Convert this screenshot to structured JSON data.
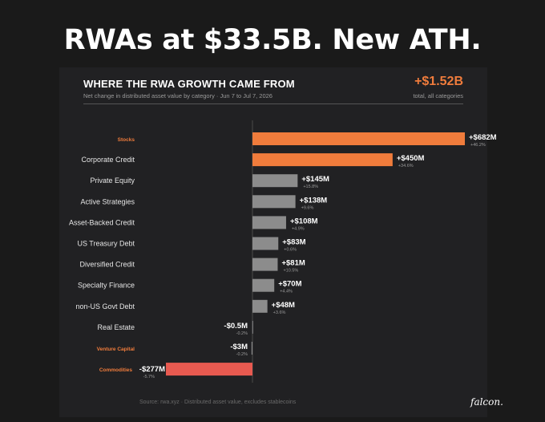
{
  "headline": "RWAs at $33.5B. New ATH.",
  "panel": {
    "title": "WHERE THE RWA GROWTH CAME FROM",
    "subtitle": "Net change in distributed asset value by category  ·  Jun 7 to Jul 7, 2026",
    "total": "+$1.52B",
    "total_label": "total, all categories"
  },
  "footer": "Source: rwa.xyz  ·  Distributed asset value, excludes stablecoins",
  "logo": "falcon.",
  "colors": {
    "orange": "#f07c3c",
    "gray": "#8c8c8c",
    "red": "#e85a50",
    "highlight_label": "#f07c3c"
  },
  "chart_data": {
    "type": "bar",
    "orientation": "horizontal",
    "unit": "$M",
    "title": "WHERE THE RWA GROWTH CAME FROM",
    "xlabel": "",
    "ylabel": "",
    "grid": false,
    "categories": [
      "Stocks",
      "Corporate Credit",
      "Private Equity",
      "Active Strategies",
      "Asset-Backed Credit",
      "US Treasury Debt",
      "Diversified Credit",
      "Specialty Finance",
      "non-US Govt Debt",
      "Real Estate",
      "Venture Capital",
      "Commodities"
    ],
    "values": [
      682,
      450,
      145,
      138,
      108,
      83,
      81,
      70,
      48,
      -0.5,
      -3,
      -277
    ],
    "value_labels": [
      "+$682M",
      "+$450M",
      "+$145M",
      "+$138M",
      "+$108M",
      "+$83M",
      "+$81M",
      "+$70M",
      "+$48M",
      "-$0.5M",
      "-$3M",
      "-$277M"
    ],
    "pct_labels": [
      "+46.2%",
      "+34.6%",
      "+15.8%",
      "+9.6%",
      "+4.9%",
      "+0.6%",
      "+10.5%",
      "+4.4%",
      "+3.6%",
      "-0.2%",
      "-0.2%",
      "-5.7%"
    ],
    "bar_colors": [
      "orange",
      "orange",
      "gray",
      "gray",
      "gray",
      "gray",
      "gray",
      "gray",
      "gray",
      "gray",
      "gray",
      "red"
    ],
    "highlighted_categories": [
      "Stocks",
      "Venture Capital",
      "Commodities"
    ],
    "xlim": [
      -277,
      682
    ]
  }
}
